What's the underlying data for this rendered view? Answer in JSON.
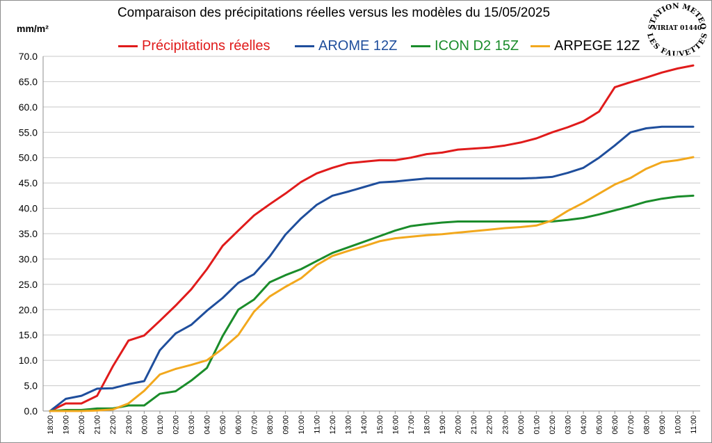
{
  "chart_data": {
    "type": "line",
    "title": "Comparaison des précipitations  réelles versus les modèles du 15/05/2025",
    "ylabel": "mm/m²",
    "xlabel": "",
    "ylim": [
      0,
      70
    ],
    "yticks": [
      "0.0",
      "5.0",
      "10.0",
      "15.0",
      "20.0",
      "25.0",
      "30.0",
      "35.0",
      "40.0",
      "45.0",
      "50.0",
      "55.0",
      "60.0",
      "65.0",
      "70.0"
    ],
    "grid": true,
    "legend_position": "top",
    "x": [
      "18:00",
      "19:00",
      "20:00",
      "21:00",
      "22:00",
      "23:00",
      "00:00",
      "01:00",
      "02:00",
      "03:00",
      "04:00",
      "05:00",
      "06:00",
      "07:00",
      "08:00",
      "09:00",
      "10:00",
      "11:00",
      "12:00",
      "13:00",
      "14:00",
      "15:00",
      "16:00",
      "17:00",
      "18:00",
      "19:00",
      "20:00",
      "21:00",
      "22:00",
      "23:00",
      "00:00",
      "01:00",
      "02:00",
      "03:00",
      "04:00",
      "05:00",
      "06:00",
      "07:00",
      "08:00",
      "09:00",
      "10:00",
      "11:00"
    ],
    "series": [
      {
        "name": "Précipitations réelles",
        "color": "#e01b1b",
        "values": [
          0,
          1.5,
          1.5,
          3.0,
          8.8,
          13.9,
          14.9,
          17.8,
          20.8,
          24.0,
          28.0,
          32.6,
          35.6,
          38.6,
          40.8,
          42.9,
          45.2,
          46.9,
          48.0,
          48.9,
          49.2,
          49.5,
          49.5,
          50.0,
          50.7,
          51.0,
          51.6,
          51.8,
          52.0,
          52.4,
          53.0,
          53.8,
          55.0,
          56.0,
          57.2,
          59.1,
          63.9,
          64.9,
          65.8,
          66.8,
          67.6,
          68.2
        ]
      },
      {
        "name": "AROME 12Z",
        "color": "#1f4e9c",
        "values": [
          0,
          2.4,
          3.0,
          4.4,
          4.5,
          5.3,
          5.9,
          12.0,
          15.3,
          17.0,
          19.8,
          22.3,
          25.3,
          27.0,
          30.5,
          34.8,
          38.0,
          40.7,
          42.5,
          43.3,
          44.2,
          45.1,
          45.3,
          45.6,
          45.9,
          45.9,
          45.9,
          45.9,
          45.9,
          45.9,
          45.9,
          46.0,
          46.2,
          47.0,
          48.0,
          50.0,
          52.4,
          55.0,
          55.8,
          56.1,
          56.1,
          56.1
        ]
      },
      {
        "name": "ICON D2 15Z",
        "color": "#1a8c2a",
        "values": [
          0,
          0.2,
          0.2,
          0.5,
          0.5,
          1.1,
          1.1,
          3.4,
          3.9,
          6.0,
          8.5,
          14.8,
          20.0,
          22.0,
          25.4,
          26.8,
          28.0,
          29.6,
          31.2,
          32.3,
          33.4,
          34.5,
          35.6,
          36.5,
          36.9,
          37.2,
          37.4,
          37.4,
          37.4,
          37.4,
          37.4,
          37.4,
          37.4,
          37.7,
          38.1,
          38.8,
          39.6,
          40.4,
          41.3,
          41.9,
          42.3,
          42.5
        ]
      },
      {
        "name": "ARPEGE 12Z",
        "color": "#f2a81d",
        "values": [
          0,
          0.0,
          0.0,
          0.1,
          0.3,
          1.5,
          4.0,
          7.2,
          8.3,
          9.1,
          10.0,
          12.3,
          15.0,
          19.6,
          22.6,
          24.5,
          26.2,
          28.8,
          30.6,
          31.6,
          32.5,
          33.5,
          34.1,
          34.4,
          34.7,
          34.9,
          35.2,
          35.5,
          35.8,
          36.1,
          36.3,
          36.6,
          37.6,
          39.5,
          41.1,
          42.9,
          44.7,
          46.0,
          47.8,
          49.1,
          49.5,
          50.1
        ]
      }
    ]
  },
  "stamp": {
    "top": "STATION METEO",
    "middle": "VIRIAT 01440",
    "bottom": "LES FAUVETTES"
  }
}
